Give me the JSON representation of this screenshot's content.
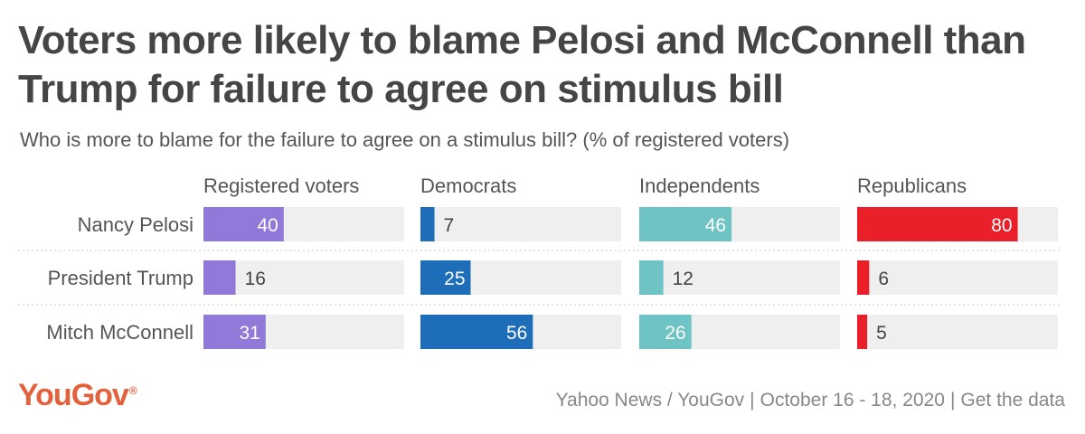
{
  "chart_data": {
    "type": "bar",
    "orientation": "horizontal",
    "title": "Voters more likely to blame Pelosi and McConnell than Trump for failure to agree on stimulus bill",
    "subtitle": "Who is more to blame for the failure to agree on a stimulus bill? (% of registered voters)",
    "categories": [
      "Nancy Pelosi",
      "President Trump",
      "Mitch McConnell"
    ],
    "xlim": [
      0,
      100
    ],
    "series": [
      {
        "name": "Registered voters",
        "color": "#9079d8",
        "values": [
          40,
          16,
          31
        ]
      },
      {
        "name": "Democrats",
        "color": "#1d6db8",
        "values": [
          7,
          25,
          56
        ]
      },
      {
        "name": "Independents",
        "color": "#6ec4c4",
        "values": [
          46,
          12,
          26
        ]
      },
      {
        "name": "Republicans",
        "color": "#e9202a",
        "values": [
          80,
          6,
          5
        ]
      }
    ],
    "track_color": "#efefef"
  },
  "source": "Yahoo News / YouGov",
  "dates": "October 16 - 18, 2020",
  "link_label": "Get the data",
  "logo": {
    "text": "YouGov",
    "mark": "®"
  }
}
